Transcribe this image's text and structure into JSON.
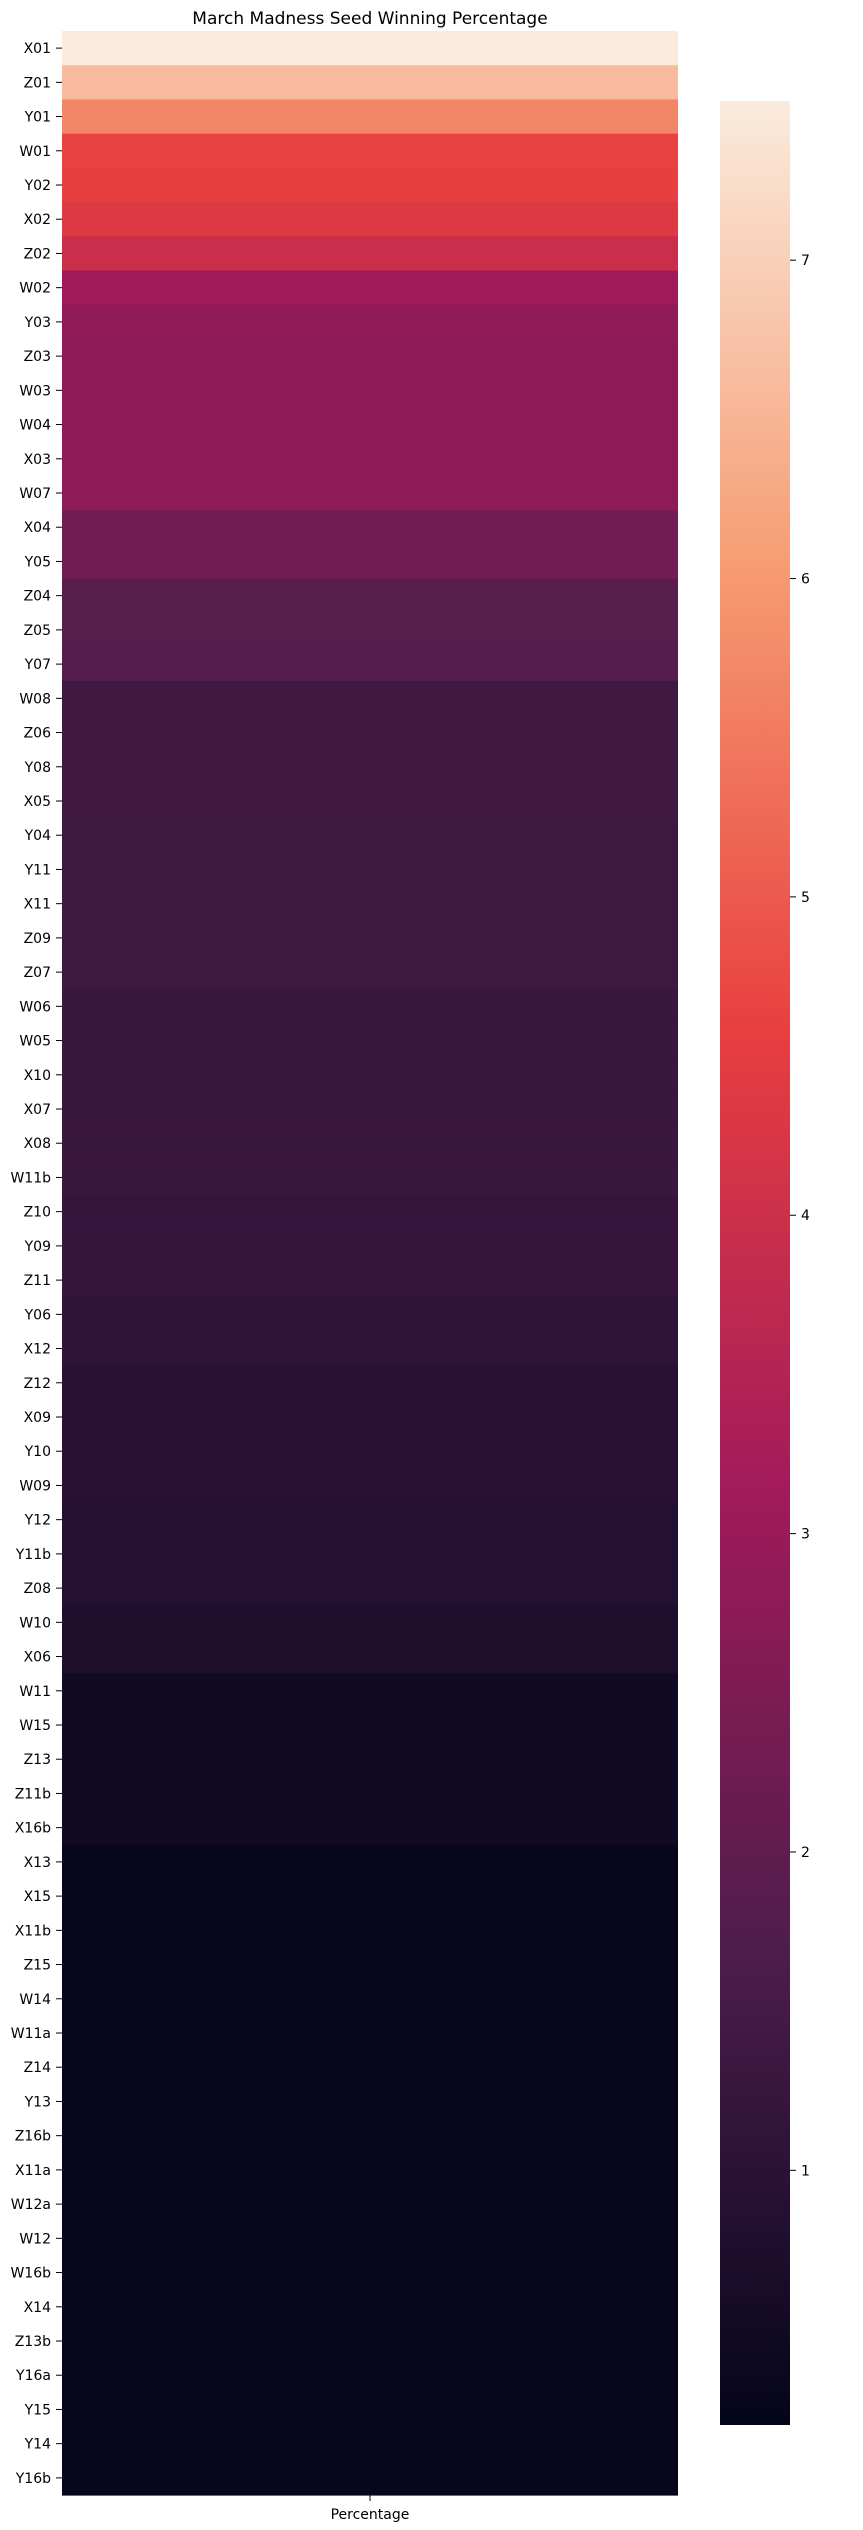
{
  "chart_data": {
    "type": "heatmap",
    "title": "March Madness Seed Winning Percentage",
    "xlabel": "",
    "ylabel": "",
    "x_categories": [
      "Percentage"
    ],
    "colormap": "rocket",
    "colorbar": {
      "range": [
        0.2,
        7.5
      ],
      "ticks": [
        1,
        2,
        3,
        4,
        5,
        6,
        7
      ],
      "stops": [
        "#03051a",
        "#4c1d4b",
        "#a11a5b",
        "#e83f3f",
        "#f69c73",
        "#faebdd"
      ]
    },
    "rows": [
      {
        "label": "X01",
        "value": 7.5
      },
      {
        "label": "Z01",
        "value": 6.6
      },
      {
        "label": "Y01",
        "value": 5.7
      },
      {
        "label": "W01",
        "value": 4.65
      },
      {
        "label": "Y02",
        "value": 4.55
      },
      {
        "label": "X02",
        "value": 4.35
      },
      {
        "label": "Z02",
        "value": 3.95
      },
      {
        "label": "W02",
        "value": 3.1
      },
      {
        "label": "Y03",
        "value": 2.85
      },
      {
        "label": "Z03",
        "value": 2.8
      },
      {
        "label": "W03",
        "value": 2.8
      },
      {
        "label": "W04",
        "value": 2.8
      },
      {
        "label": "X03",
        "value": 2.8
      },
      {
        "label": "W07",
        "value": 2.8
      },
      {
        "label": "X04",
        "value": 2.3
      },
      {
        "label": "Y05",
        "value": 2.3
      },
      {
        "label": "Z04",
        "value": 1.85
      },
      {
        "label": "Z05",
        "value": 1.85
      },
      {
        "label": "Y07",
        "value": 1.8
      },
      {
        "label": "W08",
        "value": 1.4
      },
      {
        "label": "Z06",
        "value": 1.4
      },
      {
        "label": "Y08",
        "value": 1.4
      },
      {
        "label": "X05",
        "value": 1.4
      },
      {
        "label": "Y04",
        "value": 1.35
      },
      {
        "label": "Y11",
        "value": 1.35
      },
      {
        "label": "X11",
        "value": 1.35
      },
      {
        "label": "Z09",
        "value": 1.35
      },
      {
        "label": "Z07",
        "value": 1.35
      },
      {
        "label": "W06",
        "value": 1.3
      },
      {
        "label": "W05",
        "value": 1.3
      },
      {
        "label": "X10",
        "value": 1.3
      },
      {
        "label": "X07",
        "value": 1.3
      },
      {
        "label": "X08",
        "value": 1.3
      },
      {
        "label": "W11b",
        "value": 1.3
      },
      {
        "label": "Z10",
        "value": 1.2
      },
      {
        "label": "Y09",
        "value": 1.2
      },
      {
        "label": "Z11",
        "value": 1.2
      },
      {
        "label": "Y06",
        "value": 1.1
      },
      {
        "label": "X12",
        "value": 1.1
      },
      {
        "label": "Z12",
        "value": 0.95
      },
      {
        "label": "X09",
        "value": 0.95
      },
      {
        "label": "Y10",
        "value": 0.95
      },
      {
        "label": "W09",
        "value": 0.95
      },
      {
        "label": "Y12",
        "value": 0.85
      },
      {
        "label": "Y11b",
        "value": 0.85
      },
      {
        "label": "Z08",
        "value": 0.85
      },
      {
        "label": "W10",
        "value": 0.75
      },
      {
        "label": "X06",
        "value": 0.75
      },
      {
        "label": "W11",
        "value": 0.5
      },
      {
        "label": "W15",
        "value": 0.5
      },
      {
        "label": "Z13",
        "value": 0.5
      },
      {
        "label": "Z11b",
        "value": 0.5
      },
      {
        "label": "X16b",
        "value": 0.5
      },
      {
        "label": "X13",
        "value": 0.25
      },
      {
        "label": "X15",
        "value": 0.25
      },
      {
        "label": "X11b",
        "value": 0.25
      },
      {
        "label": "Z15",
        "value": 0.25
      },
      {
        "label": "W14",
        "value": 0.25
      },
      {
        "label": "W11a",
        "value": 0.25
      },
      {
        "label": "Z14",
        "value": 0.25
      },
      {
        "label": "Y13",
        "value": 0.25
      },
      {
        "label": "Z16b",
        "value": 0.25
      },
      {
        "label": "X11a",
        "value": 0.25
      },
      {
        "label": "W12a",
        "value": 0.25
      },
      {
        "label": "W12",
        "value": 0.25
      },
      {
        "label": "W16b",
        "value": 0.25
      },
      {
        "label": "X14",
        "value": 0.25
      },
      {
        "label": "Z13b",
        "value": 0.25
      },
      {
        "label": "Y16a",
        "value": 0.25
      },
      {
        "label": "Y15",
        "value": 0.25
      },
      {
        "label": "Y14",
        "value": 0.25
      },
      {
        "label": "Y16b",
        "value": 0.25
      }
    ]
  }
}
